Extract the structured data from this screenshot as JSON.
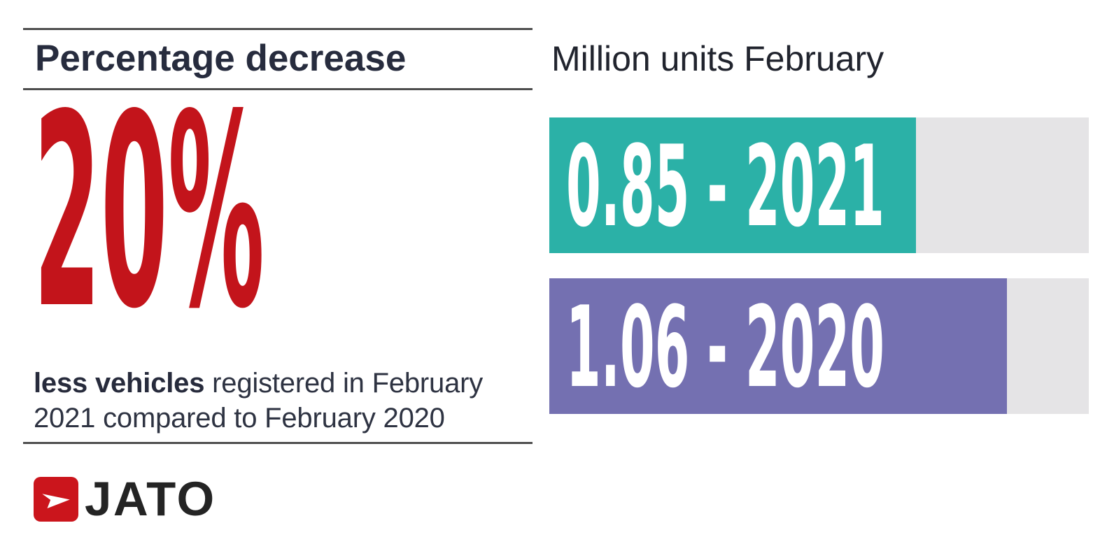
{
  "left_panel": {
    "heading": "Percentage decrease",
    "big_stat": "20%",
    "description": {
      "bold": "less vehicles",
      "rest": " registered in February 2021 compared to February 2020"
    },
    "logo": {
      "text": "JATO",
      "icon": "jato-arrow-icon"
    }
  },
  "right_panel": {
    "title": "Million units February"
  },
  "chart_data": {
    "type": "bar",
    "orientation": "horizontal",
    "title": "Million units February",
    "categories": [
      "2021",
      "2020"
    ],
    "values": [
      0.85,
      1.06
    ],
    "xlim": [
      0,
      1.25
    ],
    "grid": false,
    "legend": "none",
    "bars": [
      {
        "label": "0.85 - 2021",
        "value": 0.85,
        "year": "2021",
        "color": "#2bb1a7"
      },
      {
        "label": "1.06 - 2020",
        "value": 1.06,
        "year": "2020",
        "color": "#7470b1"
      }
    ],
    "track_color": "#e5e4e6"
  },
  "colors": {
    "accent_red": "#c3141b",
    "logo_red": "#cb151c",
    "heading_navy": "#272c3e",
    "body_text": "#2e3342",
    "rule_gray": "#4e4e4e",
    "bar_teal": "#2bb1a7",
    "bar_purple": "#7470b1",
    "bar_track_gray": "#e5e4e6",
    "background": "#ffffff"
  }
}
